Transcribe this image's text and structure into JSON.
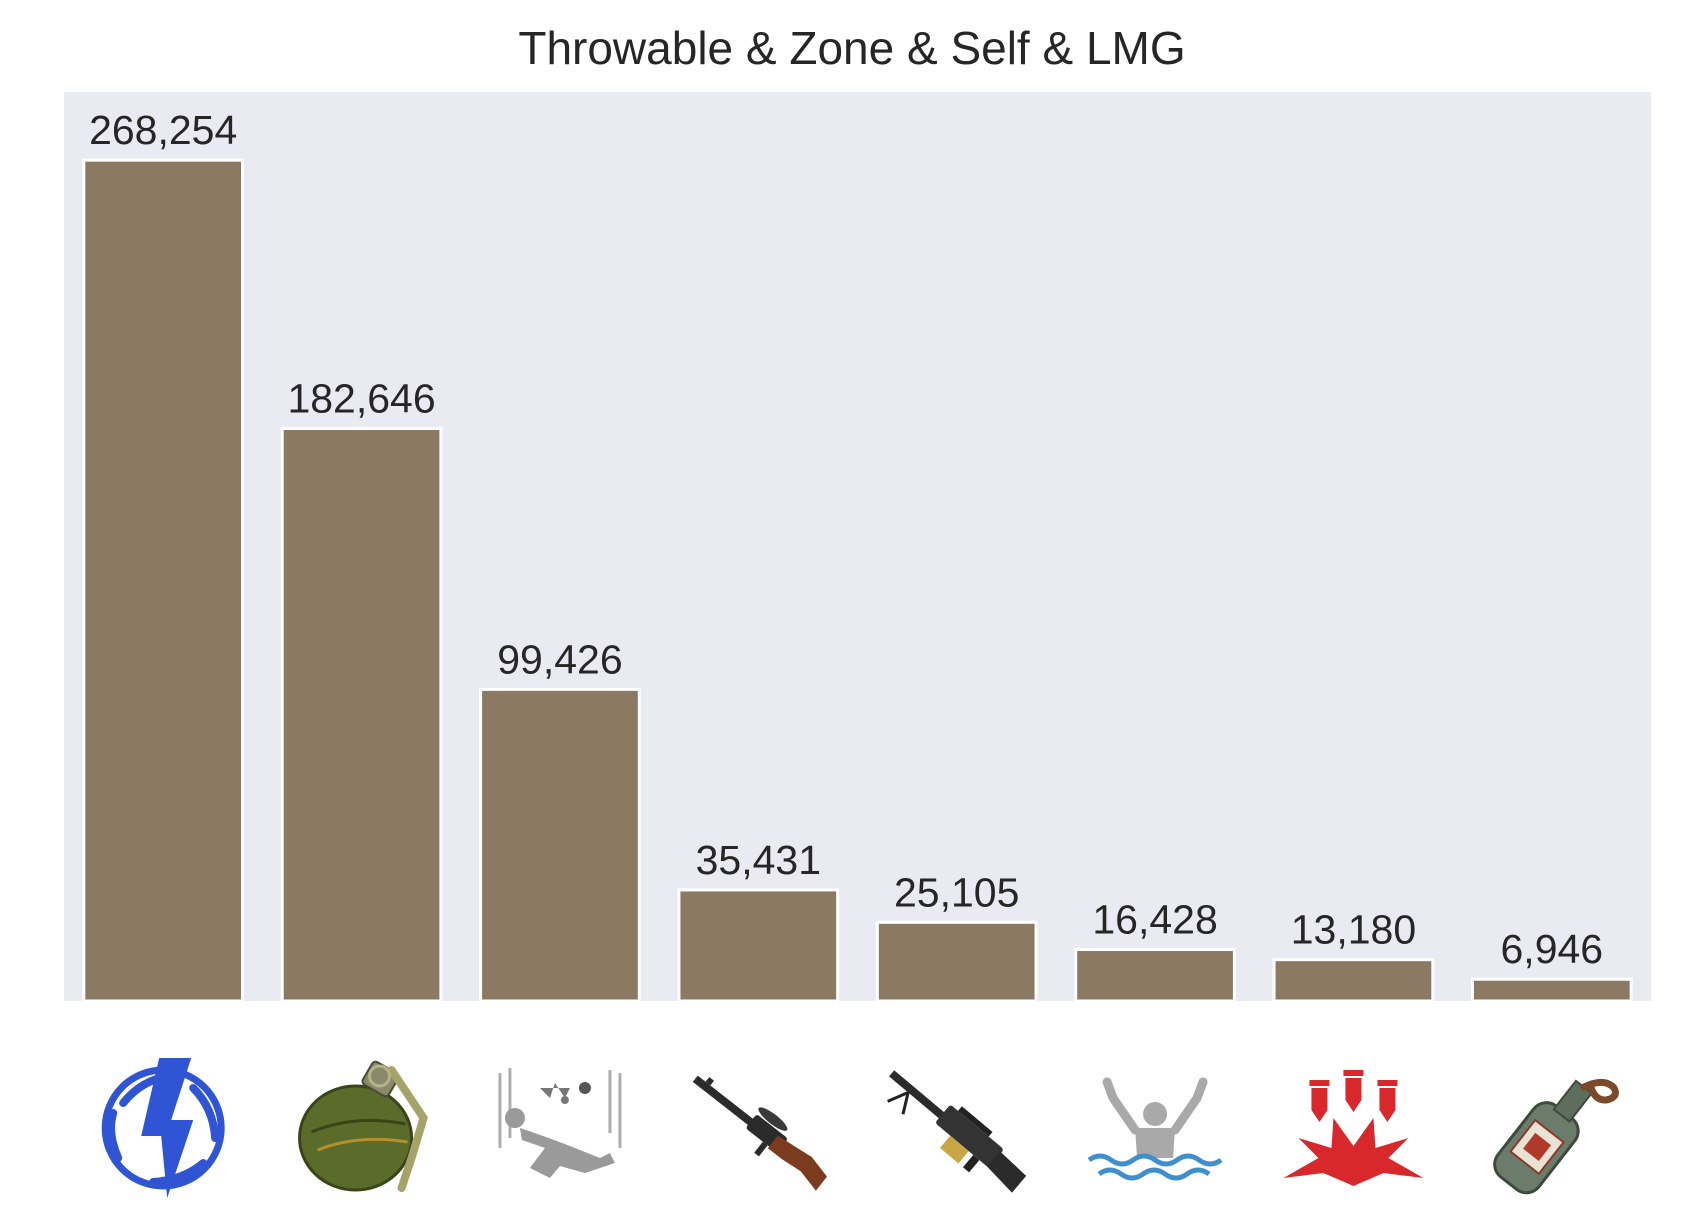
{
  "chart_data": {
    "type": "bar",
    "title": "Throwable & Zone & Self & LMG",
    "xlabel": "",
    "ylabel": "",
    "ylim": [
      0,
      290000
    ],
    "grid": false,
    "categories": [
      "bluezone-icon",
      "grenade-icon",
      "falling-icon",
      "dp28-lmg-icon",
      "m249-lmg-icon",
      "drowning-icon",
      "redzone-icon",
      "molotov-icon"
    ],
    "values": [
      268254,
      182646,
      99426,
      35431,
      25105,
      16428,
      13180,
      6946
    ],
    "data_labels": [
      "268,254",
      "182,646",
      "99,426",
      "35,431",
      "25,105",
      "16,428",
      "13,180",
      "6,946"
    ],
    "colors": {
      "bar": "#8c7964",
      "bar_edge": "#ffffff",
      "plot_background": "#eaeaf2",
      "text": "#262626",
      "bluezone": "#2f55d4",
      "grenade": "#5a6b2a",
      "falling": "#9a9a9a",
      "rifle_body": "#2b2b2b",
      "rifle_stock": "#7a3b1e",
      "drowning_figure": "#a9a9a9",
      "drowning_water": "#3f8fcf",
      "redzone": "#d8282c",
      "molotov": "#6b7c6b"
    }
  }
}
